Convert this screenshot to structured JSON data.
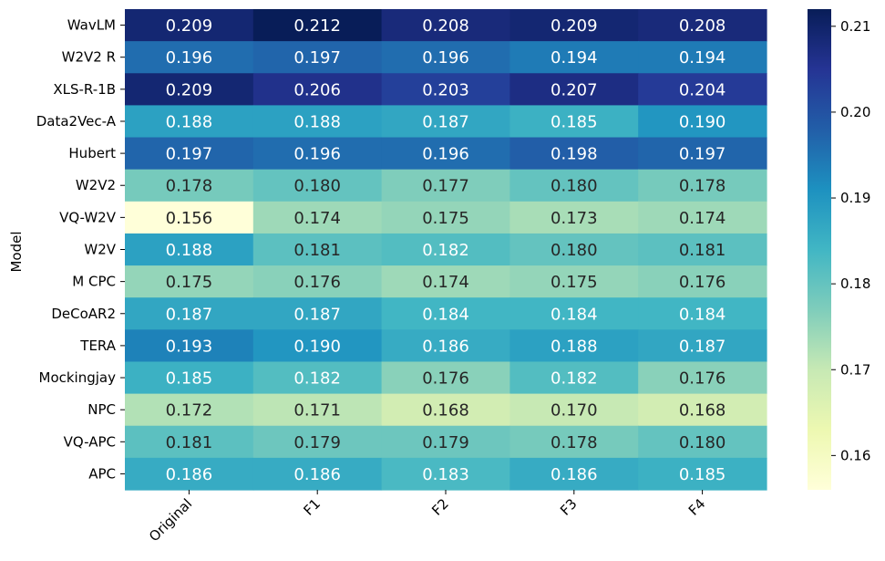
{
  "chart_data": {
    "type": "heatmap",
    "title": "",
    "xlabel": "",
    "ylabel": "Model",
    "columns": [
      "Original",
      "F1",
      "F2",
      "F3",
      "F4"
    ],
    "rows": [
      "WavLM",
      "W2V2 R",
      "XLS-R-1B",
      "Data2Vec-A",
      "Hubert",
      "W2V2",
      "VQ-W2V",
      "W2V",
      "M CPC",
      "DeCoAR2",
      "TERA",
      "Mockingjay",
      "NPC",
      "VQ-APC",
      "APC"
    ],
    "values": [
      [
        0.209,
        0.212,
        0.208,
        0.209,
        0.208
      ],
      [
        0.196,
        0.197,
        0.196,
        0.194,
        0.194
      ],
      [
        0.209,
        0.206,
        0.203,
        0.207,
        0.204
      ],
      [
        0.188,
        0.188,
        0.187,
        0.185,
        0.19
      ],
      [
        0.197,
        0.196,
        0.196,
        0.198,
        0.197
      ],
      [
        0.178,
        0.18,
        0.177,
        0.18,
        0.178
      ],
      [
        0.156,
        0.174,
        0.175,
        0.173,
        0.174
      ],
      [
        0.188,
        0.181,
        0.182,
        0.18,
        0.181
      ],
      [
        0.175,
        0.176,
        0.174,
        0.175,
        0.176
      ],
      [
        0.187,
        0.187,
        0.184,
        0.184,
        0.184
      ],
      [
        0.193,
        0.19,
        0.186,
        0.188,
        0.187
      ],
      [
        0.185,
        0.182,
        0.176,
        0.182,
        0.176
      ],
      [
        0.172,
        0.171,
        0.168,
        0.17,
        0.168
      ],
      [
        0.181,
        0.179,
        0.179,
        0.178,
        0.18
      ],
      [
        0.186,
        0.186,
        0.183,
        0.186,
        0.185
      ]
    ],
    "labels": [
      [
        "0.209",
        "0.212",
        "0.208",
        "0.209",
        "0.208"
      ],
      [
        "0.196",
        "0.197",
        "0.196",
        "0.194",
        "0.194"
      ],
      [
        "0.209",
        "0.206",
        "0.203",
        "0.207",
        "0.204"
      ],
      [
        "0.188",
        "0.188",
        "0.187",
        "0.185",
        "0.190"
      ],
      [
        "0.197",
        "0.196",
        "0.196",
        "0.198",
        "0.197"
      ],
      [
        "0.178",
        "0.180",
        "0.177",
        "0.180",
        "0.178"
      ],
      [
        "0.156",
        "0.174",
        "0.175",
        "0.173",
        "0.174"
      ],
      [
        "0.188",
        "0.181",
        "0.182",
        "0.180",
        "0.181"
      ],
      [
        "0.175",
        "0.176",
        "0.174",
        "0.175",
        "0.176"
      ],
      [
        "0.187",
        "0.187",
        "0.184",
        "0.184",
        "0.184"
      ],
      [
        "0.193",
        "0.190",
        "0.186",
        "0.188",
        "0.187"
      ],
      [
        "0.185",
        "0.182",
        "0.176",
        "0.182",
        "0.176"
      ],
      [
        "0.172",
        "0.171",
        "0.168",
        "0.170",
        "0.168"
      ],
      [
        "0.181",
        "0.179",
        "0.179",
        "0.178",
        "0.180"
      ],
      [
        "0.186",
        "0.186",
        "0.183",
        "0.186",
        "0.185"
      ]
    ],
    "colormap": "YlGnBu",
    "vmin": 0.156,
    "vmax": 0.212,
    "colorbar_ticks": [
      0.16,
      0.17,
      0.18,
      0.19,
      0.2,
      0.21
    ],
    "colorbar_tick_labels": [
      "0.16",
      "0.17",
      "0.18",
      "0.19",
      "0.20",
      "0.21"
    ],
    "colormap_stops": [
      "#ffffd9",
      "#edf8b1",
      "#c7e9b4",
      "#7fcdbb",
      "#41b6c4",
      "#1d91c0",
      "#225ea8",
      "#253494",
      "#081d58"
    ],
    "text_colors": {
      "dark": "#262626",
      "light": "#ffffff"
    }
  }
}
